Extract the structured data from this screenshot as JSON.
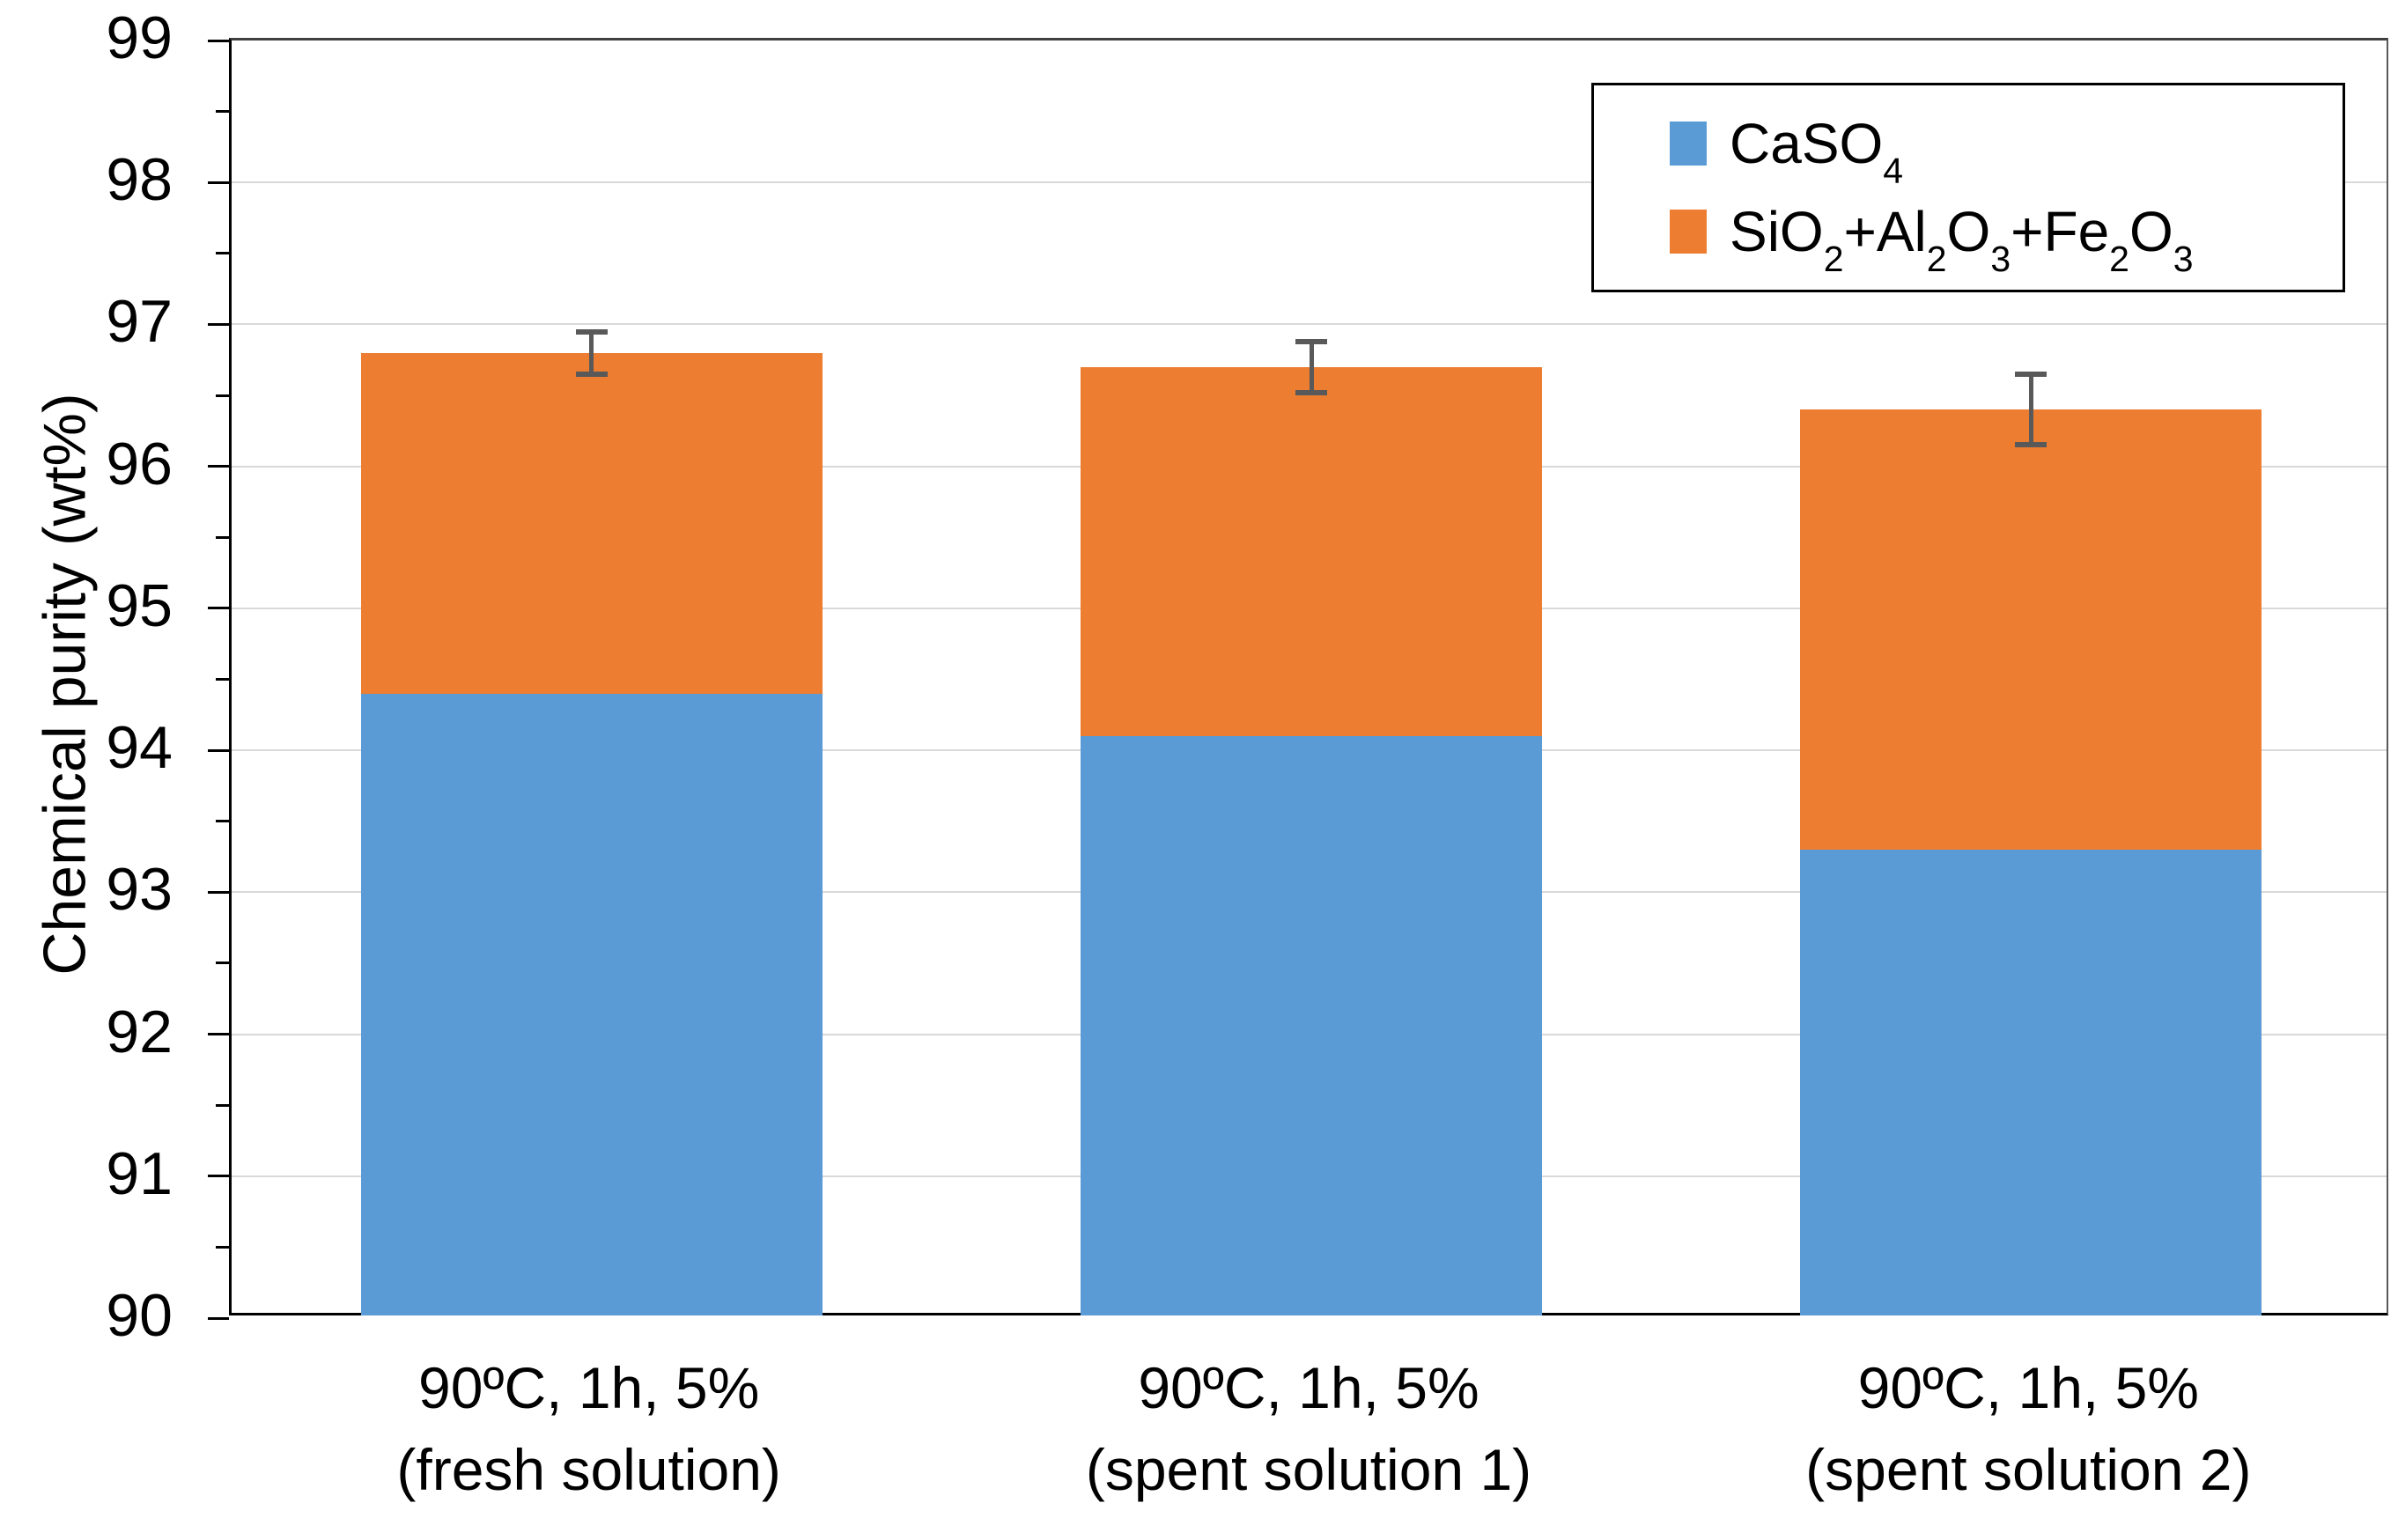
{
  "chart_data": {
    "type": "bar",
    "stacked": true,
    "ylabel": "Chemical purity (wt%)",
    "ylim": [
      90,
      99
    ],
    "ytick_step": 1,
    "yminor_step": 0.5,
    "yticks": [
      90,
      91,
      92,
      93,
      94,
      95,
      96,
      97,
      98,
      99
    ],
    "grid": "horizontal-major",
    "legend_position": "top-right-boxed",
    "categories": [
      {
        "line1": "90ºC, 1h, 5%",
        "line2": "(fresh solution)"
      },
      {
        "line1": "90ºC, 1h, 5%",
        "line2": "(spent solution 1)"
      },
      {
        "line1": "90ºC, 1h, 5%",
        "line2": "(spent solution 2)"
      }
    ],
    "series": [
      {
        "name": "CaSO₄",
        "color": "#5B9BD5",
        "values": [
          94.4,
          94.1,
          93.3
        ]
      },
      {
        "name": "SiO₂+Al₂O₃+Fe₂O₃",
        "color": "#ED7D31",
        "values": [
          2.4,
          2.6,
          3.1
        ]
      }
    ],
    "stack_totals": [
      96.8,
      96.7,
      96.4
    ],
    "error_bars": {
      "color": "#595959",
      "half_widths": [
        0.15,
        0.18,
        0.25
      ]
    }
  },
  "colors": {
    "background": "#FFFFFF",
    "gridline": "#D9D9D9",
    "axis_line": "#000000",
    "plot_border": "#595959",
    "blue_series": "#5B9BD5",
    "orange_series": "#ED7D31",
    "error_bar": "#595959"
  }
}
